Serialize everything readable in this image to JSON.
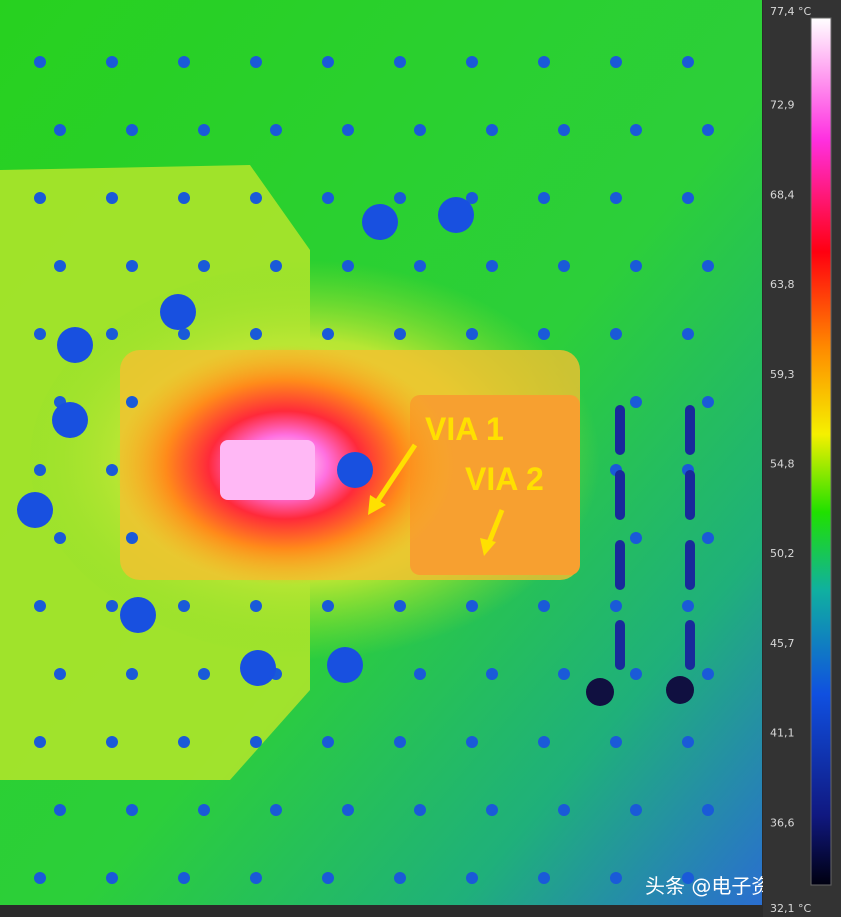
{
  "scale": {
    "max_label": "77,4 °C",
    "labels": [
      "72,9",
      "68,4",
      "63,8",
      "59,3",
      "54,8",
      "50,2",
      "45,7",
      "41,1",
      "36,6"
    ],
    "min_label": "32,1 °C"
  },
  "annotations": [
    "VIA 1",
    "VIA 2"
  ],
  "watermark": "头条 @电子资料库"
}
